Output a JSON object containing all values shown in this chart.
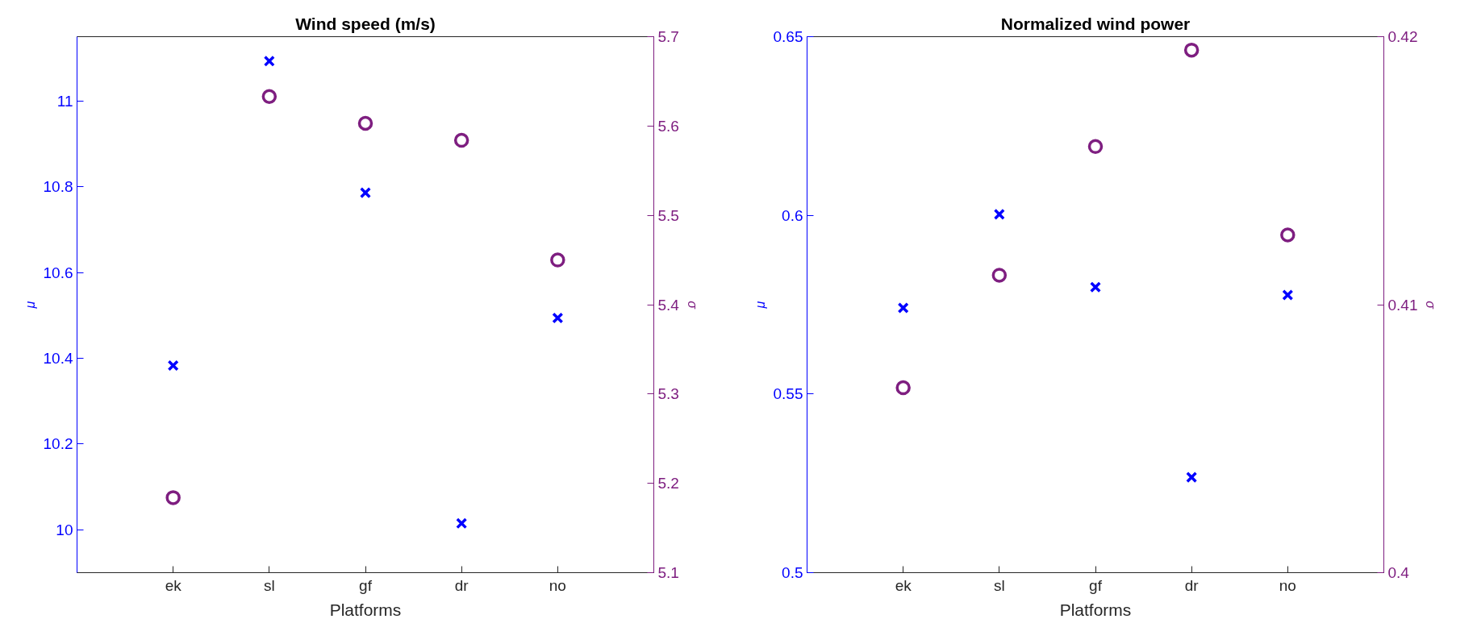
{
  "chart_data": [
    {
      "type": "scatter",
      "title": "Wind speed (m/s)",
      "xlabel": "Platforms",
      "ylabel": "μ",
      "y2label": "σ",
      "categories": [
        "ek",
        "sl",
        "gf",
        "dr",
        "no"
      ],
      "ylim": [
        9.9,
        11.15
      ],
      "yticks": [
        10,
        10.2,
        10.4,
        10.6,
        10.8,
        11
      ],
      "y2lim": [
        5.1,
        5.7
      ],
      "y2ticks": [
        5.1,
        5.2,
        5.3,
        5.4,
        5.5,
        5.6,
        5.7
      ],
      "grid": false,
      "series": [
        {
          "color": "#0000ff",
          "marker": "cross",
          "values": [
            10.383,
            11.093,
            10.786,
            10.015,
            10.494
          ]
        },
        {
          "color": "#7e1e80",
          "marker": "circle",
          "axis": "y2",
          "values": [
            5.184,
            5.633,
            5.603,
            5.584,
            5.45
          ]
        }
      ]
    },
    {
      "type": "scatter",
      "title": "Normalized wind power",
      "xlabel": "Platforms",
      "ylabel": "μ",
      "y2label": "σ",
      "categories": [
        "ek",
        "sl",
        "gf",
        "dr",
        "no"
      ],
      "ylim": [
        0.5,
        0.65
      ],
      "yticks": [
        0.5,
        0.55,
        0.6,
        0.65
      ],
      "y2lim": [
        0.4,
        0.42
      ],
      "y2ticks": [
        0.4,
        0.41,
        0.42
      ],
      "grid": false,
      "series": [
        {
          "color": "#0000ff",
          "marker": "cross",
          "values": [
            0.5741,
            0.6003,
            0.5799,
            0.5267,
            0.5777
          ]
        },
        {
          "color": "#7e1e80",
          "marker": "circle",
          "axis": "y2",
          "values": [
            0.4069,
            0.4111,
            0.4159,
            0.4195,
            0.4126
          ]
        }
      ]
    }
  ]
}
